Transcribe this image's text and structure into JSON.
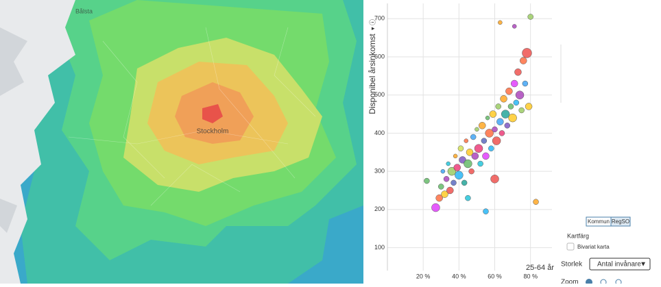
{
  "chart_data": {
    "type": "scatter",
    "y_label": "Disponibel årsinkomst",
    "x_corner_label": "25-64 år",
    "xlim": [
      0,
      92
    ],
    "ylim": [
      40,
      740
    ],
    "xticks": [
      {
        "value": 20,
        "label": "20 %"
      },
      {
        "value": 40,
        "label": "40 %"
      },
      {
        "value": 60,
        "label": "60 %"
      },
      {
        "value": 80,
        "label": "80 %"
      }
    ],
    "yticks": [
      100,
      200,
      300,
      400,
      500,
      600,
      700
    ],
    "grid": true,
    "x": [
      27,
      29,
      30,
      31,
      32,
      33,
      34,
      35,
      36,
      37,
      38,
      39,
      40,
      41,
      42,
      43,
      44,
      45,
      46,
      47,
      48,
      49,
      50,
      51,
      52,
      53,
      54,
      55,
      56,
      57,
      58,
      59,
      60,
      61,
      62,
      63,
      64,
      65,
      66,
      67,
      68,
      69,
      70,
      71,
      72,
      73,
      74,
      75,
      76,
      77,
      78,
      79,
      80,
      63,
      71,
      55,
      83,
      22,
      60,
      45
    ],
    "values": [
      205,
      230,
      260,
      300,
      240,
      280,
      320,
      250,
      300,
      270,
      340,
      310,
      290,
      360,
      330,
      270,
      380,
      320,
      350,
      300,
      390,
      340,
      410,
      360,
      320,
      420,
      380,
      340,
      440,
      400,
      360,
      450,
      410,
      380,
      470,
      430,
      400,
      490,
      450,
      420,
      510,
      470,
      440,
      530,
      480,
      560,
      500,
      460,
      590,
      530,
      610,
      470,
      705,
      690,
      680,
      195,
      220,
      275,
      280,
      230
    ],
    "sizes": [
      6,
      5,
      4,
      3,
      5,
      4,
      3,
      5,
      6,
      4,
      3,
      5,
      6,
      4,
      5,
      4,
      3,
      6,
      5,
      4,
      4,
      5,
      3,
      6,
      4,
      5,
      4,
      5,
      3,
      6,
      4,
      5,
      4,
      6,
      4,
      5,
      4,
      5,
      6,
      4,
      5,
      4,
      6,
      5,
      4,
      5,
      6,
      4,
      5,
      4,
      7,
      5,
      4,
      3,
      3,
      4,
      4,
      4,
      6,
      4
    ],
    "colors": [
      "#e040fb",
      "#ff7043",
      "#66bb6a",
      "#42a5f5",
      "#ffca28",
      "#ab47bc",
      "#26c6da",
      "#ef5350",
      "#9ccc65",
      "#5c6bc0",
      "#ffa726",
      "#ec407a",
      "#29b6f6",
      "#d4e157",
      "#7e57c2",
      "#26a69a",
      "#ff7043",
      "#66bb6a",
      "#ffca28",
      "#ef5350",
      "#42a5f5",
      "#ab47bc",
      "#9ccc65",
      "#ec407a",
      "#26c6da",
      "#ffa726",
      "#5c6bc0",
      "#e040fb",
      "#66bb6a",
      "#ff7043",
      "#29b6f6",
      "#ffca28",
      "#ab47bc",
      "#ef5350",
      "#9ccc65",
      "#42a5f5",
      "#ec407a",
      "#ffa726",
      "#26a69a",
      "#7e57c2",
      "#ff7043",
      "#66bb6a",
      "#ffca28",
      "#e040fb",
      "#29b6f6",
      "#ef5350",
      "#ab47bc",
      "#9ccc65",
      "#ff7043",
      "#42a5f5",
      "#ef5350",
      "#ffca28",
      "#9ccc65",
      "#ffa726",
      "#ab47bc",
      "#29b6f6",
      "#ffa726",
      "#66bb6a",
      "#ef5350",
      "#26c6da"
    ]
  },
  "ui": {
    "map_labels": [
      "Bålsta",
      "Stockholm"
    ],
    "level_buttons": [
      "Kommun",
      "RegSO"
    ],
    "map_color_label": "Kartfärg",
    "bivariate_label": "Bivariat karta",
    "size_label": "Storlek",
    "size_select": "Antal invånare",
    "zoom_label": "Zoom"
  }
}
